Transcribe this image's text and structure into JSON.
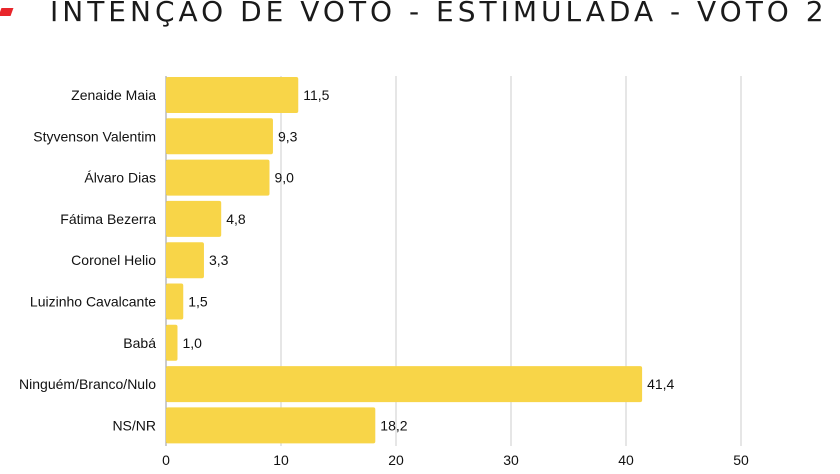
{
  "chart_data": {
    "type": "bar",
    "orientation": "horizontal",
    "title": "INTENÇÃO DE VOTO - ESTIMULADA - VOTO 2",
    "categories": [
      "Zenaide Maia",
      "Styvenson Valentim",
      "Álvaro Dias",
      "Fátima Bezerra",
      "Coronel Helio",
      "Luizinho Cavalcante",
      "Babá",
      "Ninguém/Branco/Nulo",
      "NS/NR"
    ],
    "values": [
      11.5,
      9.3,
      9.0,
      4.8,
      3.3,
      1.5,
      1.0,
      41.4,
      18.2
    ],
    "value_labels": [
      "11,5",
      "9,3",
      "9,0",
      "4,8",
      "3,3",
      "1,5",
      "1,0",
      "41,4",
      "18,2"
    ],
    "xticks": [
      0,
      10,
      20,
      30,
      40,
      50
    ],
    "xlim": [
      0,
      55
    ],
    "grid": true,
    "bar_color": "#f8d548",
    "grid_color": "#cccccc"
  }
}
